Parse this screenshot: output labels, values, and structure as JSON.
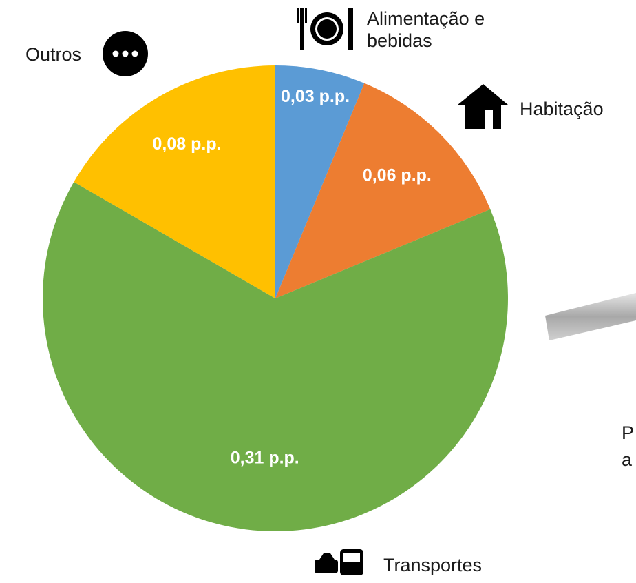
{
  "chart_data": {
    "type": "pie",
    "categories": [
      "Alimentação e bebidas",
      "Habitação",
      "Transportes",
      "Outros"
    ],
    "values": [
      0.03,
      0.06,
      0.31,
      0.08
    ],
    "value_labels": [
      "0,03 p.p.",
      "0,06 p.p.",
      "0,31 p.p.",
      "0,08 p.p."
    ],
    "colors": [
      "#5b9bd5",
      "#ed7d31",
      "#70ad47",
      "#ffc000"
    ],
    "annotations": [
      "P",
      "a"
    ]
  }
}
